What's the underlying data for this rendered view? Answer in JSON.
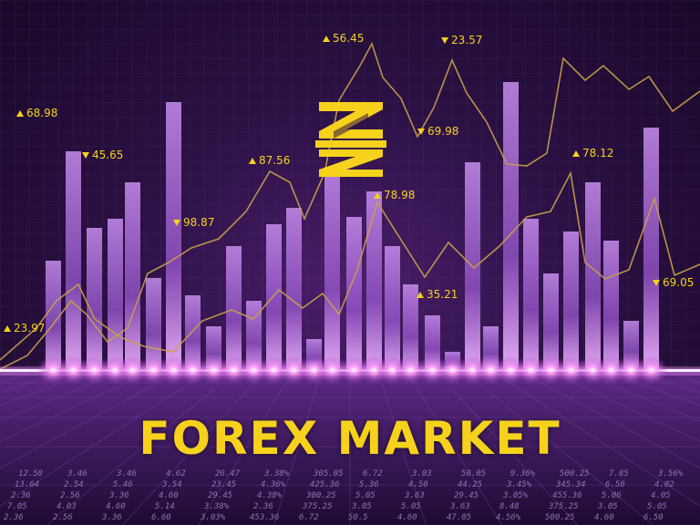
{
  "headline": "FOREX MARKET",
  "colors": {
    "accent": "#f6d21c",
    "background": "#2c1145",
    "bar": "#b87ee6",
    "glow": "#ff7cf5"
  },
  "logo": {
    "icon": "stylized-z-logo-icon"
  },
  "tickers": [
    {
      "direction": "up",
      "value": "23.97"
    },
    {
      "direction": "up",
      "value": "68.98"
    },
    {
      "direction": "down",
      "value": "45.65"
    },
    {
      "direction": "down",
      "value": "98.87"
    },
    {
      "direction": "up",
      "value": "87.56"
    },
    {
      "direction": "up",
      "value": "56.45"
    },
    {
      "direction": "up",
      "value": "78.98"
    },
    {
      "direction": "up",
      "value": "35.21"
    },
    {
      "direction": "down",
      "value": "23.57"
    },
    {
      "direction": "down",
      "value": "69.98"
    },
    {
      "direction": "up",
      "value": "78.12"
    },
    {
      "direction": "down",
      "value": "69.05"
    }
  ],
  "floor_rows": [
    [
      "12.58",
      "3.46",
      "3.46",
      "4.62",
      "26.47",
      "3.38%",
      "305.05",
      "6.72",
      "3.03",
      "50.05",
      "9.36%",
      "500.25",
      "7.85",
      "3.56%"
    ],
    [
      "13.64",
      "2.54",
      "5.46",
      "3.54",
      "23.45",
      "4.36%",
      "425.36",
      "5.36",
      "4.50",
      "44.25",
      "3.45%",
      "345.34",
      "6.50",
      "4.02"
    ],
    [
      "2.36",
      "2.56",
      "3.36",
      "4.60",
      "29.45",
      "4.38%",
      "300.25",
      "5.05",
      "3.63",
      "29.45",
      "3.05%",
      "455.36",
      "5.06",
      "4.05"
    ],
    [
      "7.05",
      "4.03",
      "4.60",
      "5.14",
      "3.38%",
      "2.36",
      "375.25",
      "3.05",
      "5.05",
      "3.63",
      "8.48",
      "375.25",
      "3.05",
      "5.05"
    ],
    [
      "2.36",
      "2.56",
      "3.36",
      "6.60",
      "3.03%",
      "453.36",
      "6.72",
      "50.5",
      "4.60",
      "47.05",
      "4.56%",
      "500.25",
      "4.60",
      "6.50"
    ]
  ]
}
